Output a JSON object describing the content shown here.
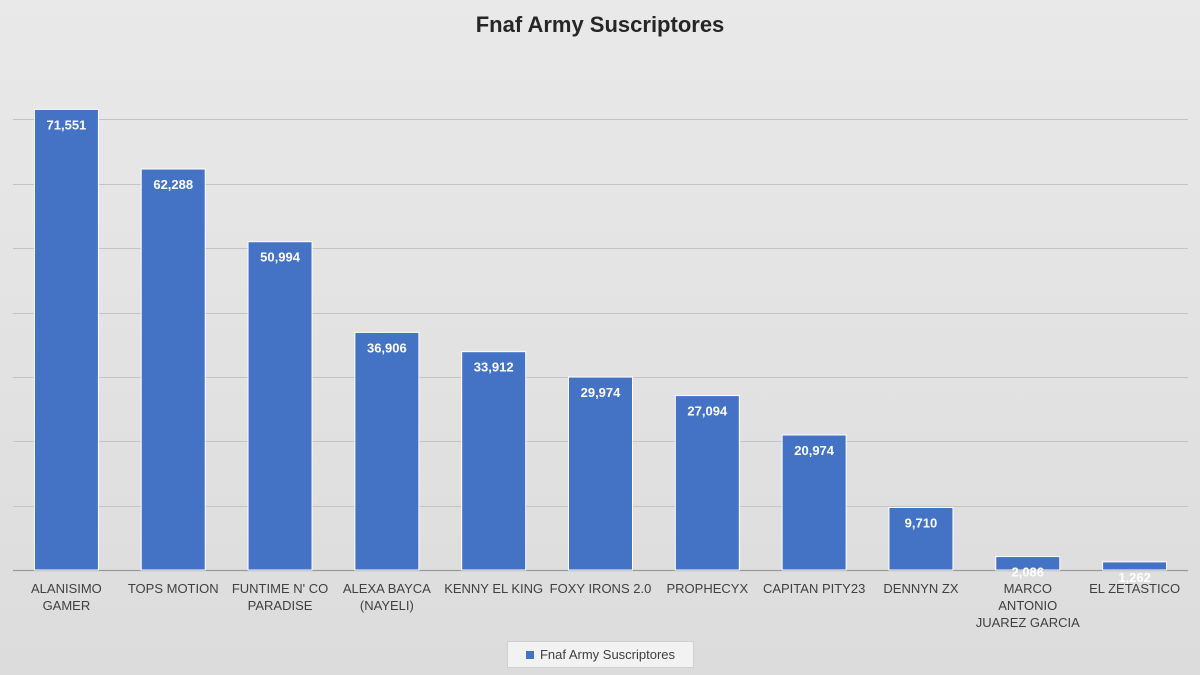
{
  "chart_data": {
    "type": "bar",
    "title": "Fnaf Army Suscriptores",
    "xlabel": "",
    "ylabel": "",
    "categories": [
      [
        "ALANISIMO",
        "GAMER"
      ],
      [
        "TOPS MOTION"
      ],
      [
        "FUNTIME N' CO",
        "PARADISE"
      ],
      [
        "ALEXA BAYCA",
        "(NAYELI)"
      ],
      [
        "KENNY EL KING"
      ],
      [
        "FOXY IRONS 2.0"
      ],
      [
        "PROPHECYX"
      ],
      [
        "CAPITAN PITY23"
      ],
      [
        "DENNYN ZX"
      ],
      [
        "MARCO",
        "ANTONIO",
        "JUAREZ GARCIA"
      ],
      [
        "EL ZETASTICO"
      ]
    ],
    "series": [
      {
        "name": "Fnaf Army Suscriptores",
        "values": [
          71551,
          62288,
          50994,
          36906,
          33912,
          29974,
          27094,
          20974,
          9710,
          2086,
          1262
        ],
        "labels": [
          "71,551",
          "62,288",
          "50,994",
          "36,906",
          "33,912",
          "29,974",
          "27,094",
          "20,974",
          "9,710",
          "2,086",
          "1,262"
        ],
        "color": "#4472c4"
      }
    ],
    "ylim": [
      0,
      80000
    ],
    "gridlines": [
      0,
      10000,
      20000,
      30000,
      40000,
      50000,
      60000,
      70000
    ],
    "grid": true,
    "legend_position": "bottom"
  }
}
